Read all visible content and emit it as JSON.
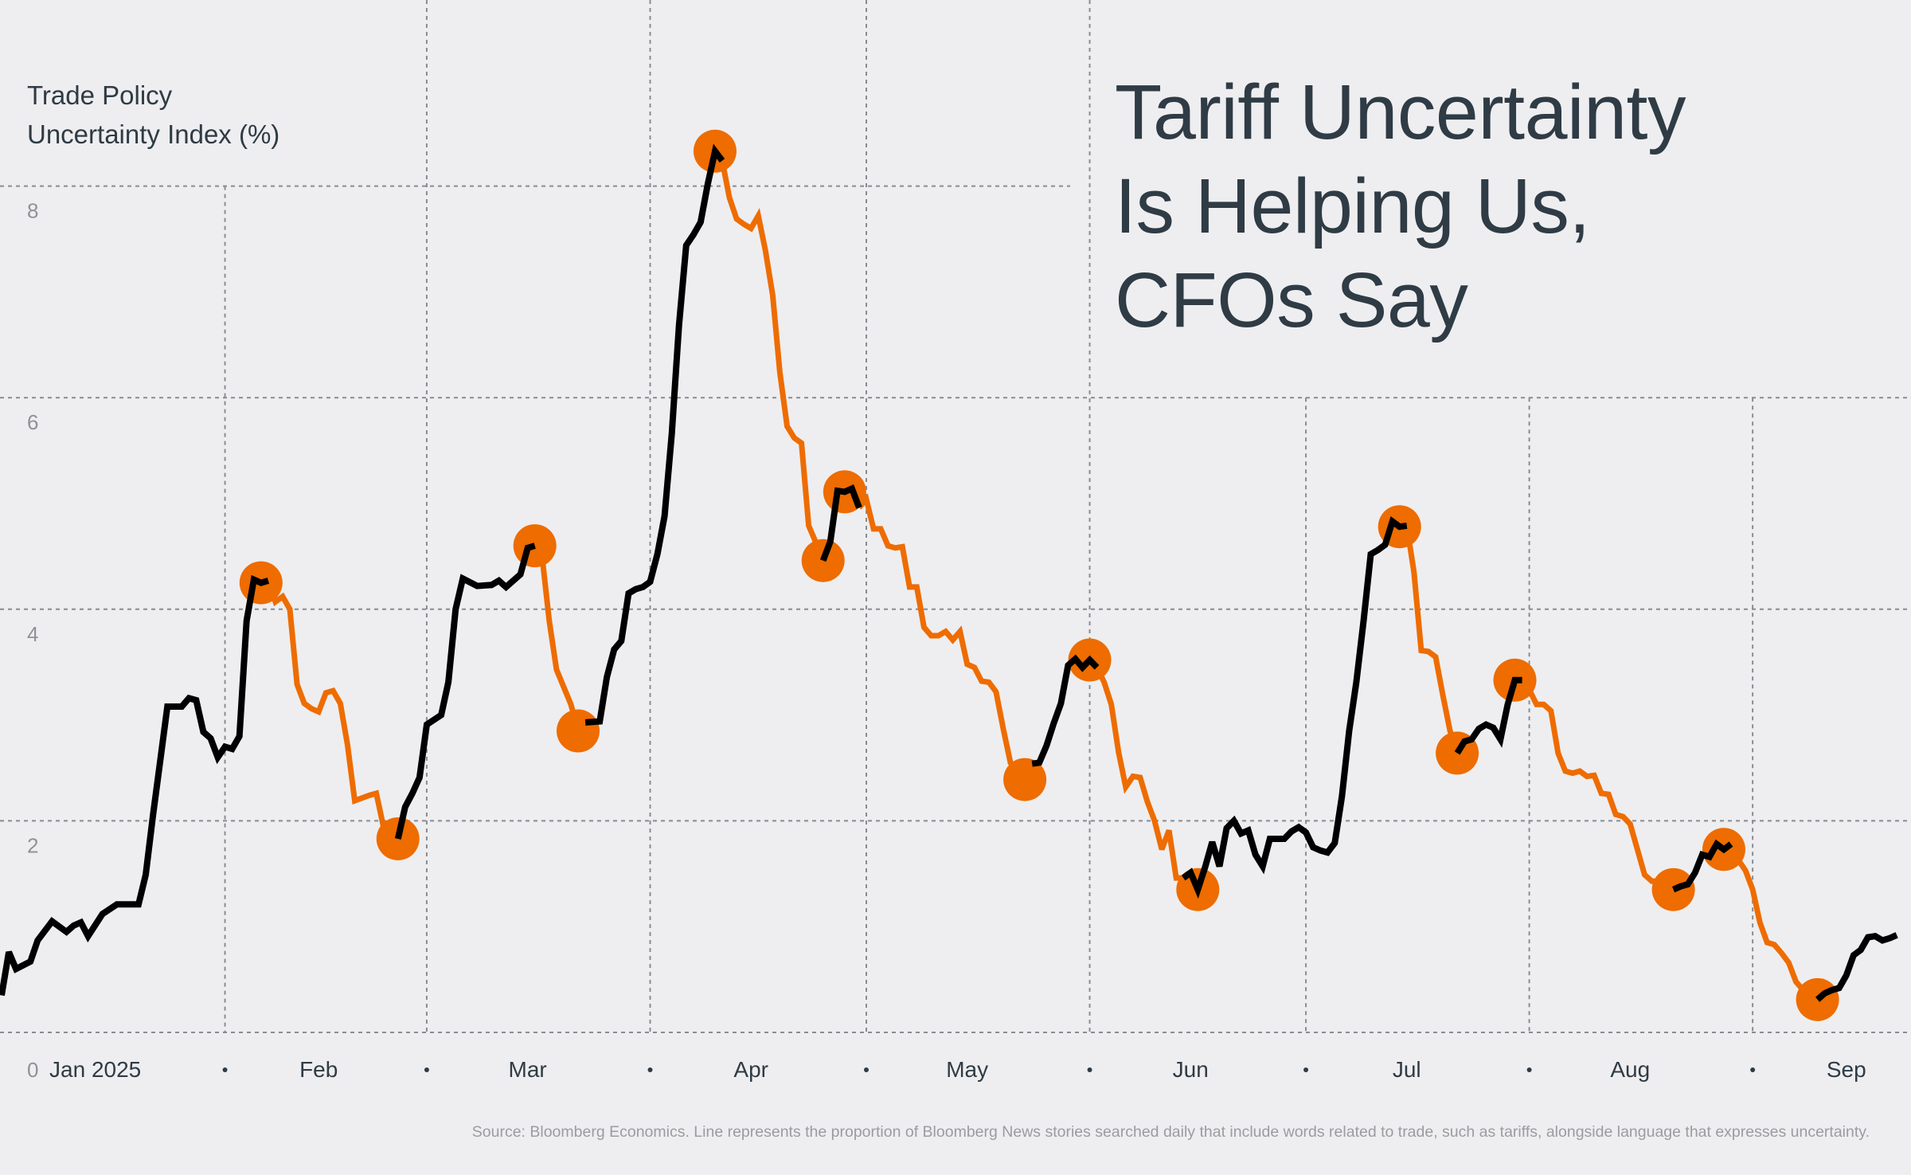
{
  "title_lines": [
    "Tariff Uncertainty",
    "Is Helping Us,",
    "CFOs Say"
  ],
  "y_axis_title_lines": [
    "Trade Policy",
    "Uncertainty Index (%)"
  ],
  "source": "Source: Bloomberg Economics. Line represents the proportion of Bloomberg News stories searched daily that include words related to trade, such as tariffs, alongside language that expresses uncertainty.",
  "colors": {
    "background": "#eeeef0",
    "rising_line": "#000000",
    "falling_line": "#ee6c00",
    "marker": "#ee6c00",
    "text": "#2f3b45",
    "grid": "#8a8c90"
  },
  "chart_data": {
    "type": "line",
    "title": "Tariff Uncertainty Is Helping Us, CFOs Say",
    "ylabel": "Trade Policy Uncertainty Index (%)",
    "xlabel": "",
    "ylim": [
      0,
      8.8
    ],
    "y_ticks": [
      "0",
      "2",
      "4",
      "6",
      "8"
    ],
    "x_tick_labels": [
      "Jan 2025",
      "Feb",
      "Mar",
      "Apr",
      "May",
      "Jun",
      "Jul",
      "Aug",
      "Sep"
    ],
    "grid": true,
    "series_points": [
      [
        "2025-01-01",
        0.35
      ],
      [
        "2025-01-02",
        0.76
      ],
      [
        "2025-01-03",
        0.6
      ],
      [
        "2025-01-05",
        0.67
      ],
      [
        "2025-01-06",
        0.87
      ],
      [
        "2025-01-08",
        1.05
      ],
      [
        "2025-01-10",
        0.95
      ],
      [
        "2025-01-11",
        1.01
      ],
      [
        "2025-01-12",
        1.04
      ],
      [
        "2025-01-13",
        0.91
      ],
      [
        "2025-01-15",
        1.12
      ],
      [
        "2025-01-17",
        1.21
      ],
      [
        "2025-01-20",
        1.21
      ],
      [
        "2025-01-21",
        1.49
      ],
      [
        "2025-01-22",
        2.05
      ],
      [
        "2025-01-23",
        2.56
      ],
      [
        "2025-01-24",
        3.08
      ],
      [
        "2025-01-26",
        3.08
      ],
      [
        "2025-01-27",
        3.16
      ],
      [
        "2025-01-28",
        3.14
      ],
      [
        "2025-01-29",
        2.84
      ],
      [
        "2025-01-30",
        2.78
      ],
      [
        "2025-01-31",
        2.6
      ],
      [
        "2025-02-01",
        2.7
      ],
      [
        "2025-02-02",
        2.68
      ],
      [
        "2025-02-03",
        2.8
      ],
      [
        "2025-02-04",
        3.89
      ],
      [
        "2025-02-05",
        4.28
      ],
      [
        "2025-02-06",
        4.25
      ],
      [
        "2025-02-07",
        4.27
      ],
      [
        "2025-02-08",
        4.07
      ],
      [
        "2025-02-09",
        4.12
      ],
      [
        "2025-02-10",
        4.0
      ],
      [
        "2025-02-11",
        3.29
      ],
      [
        "2025-02-12",
        3.11
      ],
      [
        "2025-02-13",
        3.06
      ],
      [
        "2025-02-14",
        3.03
      ],
      [
        "2025-02-15",
        3.21
      ],
      [
        "2025-02-16",
        3.23
      ],
      [
        "2025-02-17",
        3.11
      ],
      [
        "2025-02-18",
        2.72
      ],
      [
        "2025-02-19",
        2.19
      ],
      [
        "2025-02-21",
        2.24
      ],
      [
        "2025-02-22",
        2.26
      ],
      [
        "2025-02-23",
        1.94
      ],
      [
        "2025-02-24",
        1.86
      ],
      [
        "2025-02-25",
        1.83
      ],
      [
        "2025-02-26",
        2.13
      ],
      [
        "2025-02-27",
        2.26
      ],
      [
        "2025-02-28",
        2.41
      ],
      [
        "2025-03-01",
        2.91
      ],
      [
        "2025-03-03",
        3.0
      ],
      [
        "2025-03-04",
        3.31
      ],
      [
        "2025-03-05",
        4.0
      ],
      [
        "2025-03-06",
        4.29
      ],
      [
        "2025-03-08",
        4.22
      ],
      [
        "2025-03-10",
        4.23
      ],
      [
        "2025-03-11",
        4.27
      ],
      [
        "2025-03-12",
        4.21
      ],
      [
        "2025-03-14",
        4.33
      ],
      [
        "2025-03-15",
        4.58
      ],
      [
        "2025-03-16",
        4.6
      ],
      [
        "2025-03-17",
        4.5
      ],
      [
        "2025-03-18",
        3.89
      ],
      [
        "2025-03-19",
        3.43
      ],
      [
        "2025-03-21",
        3.1
      ],
      [
        "2025-03-22",
        2.85
      ],
      [
        "2025-03-23",
        2.93
      ],
      [
        "2025-03-25",
        2.94
      ],
      [
        "2025-03-26",
        3.36
      ],
      [
        "2025-03-27",
        3.62
      ],
      [
        "2025-03-28",
        3.7
      ],
      [
        "2025-03-29",
        4.15
      ],
      [
        "2025-03-30",
        4.19
      ],
      [
        "2025-03-31",
        4.21
      ],
      [
        "2025-04-01",
        4.26
      ],
      [
        "2025-04-02",
        4.52
      ],
      [
        "2025-04-03",
        4.88
      ],
      [
        "2025-04-04",
        5.66
      ],
      [
        "2025-04-05",
        6.68
      ],
      [
        "2025-04-06",
        7.44
      ],
      [
        "2025-04-07",
        7.54
      ],
      [
        "2025-04-08",
        7.66
      ],
      [
        "2025-04-09",
        8.02
      ],
      [
        "2025-04-10",
        8.33
      ],
      [
        "2025-04-11",
        8.24
      ],
      [
        "2025-04-12",
        7.89
      ],
      [
        "2025-04-13",
        7.69
      ],
      [
        "2025-04-14",
        7.64
      ],
      [
        "2025-04-15",
        7.6
      ],
      [
        "2025-04-16",
        7.72
      ],
      [
        "2025-04-17",
        7.39
      ],
      [
        "2025-04-18",
        6.97
      ],
      [
        "2025-04-19",
        6.24
      ],
      [
        "2025-04-20",
        5.73
      ],
      [
        "2025-04-21",
        5.62
      ],
      [
        "2025-04-22",
        5.57
      ],
      [
        "2025-04-23",
        4.79
      ],
      [
        "2025-04-24",
        4.63
      ],
      [
        "2025-04-25",
        4.46
      ],
      [
        "2025-04-26",
        4.64
      ],
      [
        "2025-04-27",
        5.12
      ],
      [
        "2025-04-28",
        5.11
      ],
      [
        "2025-04-29",
        5.14
      ],
      [
        "2025-04-30",
        4.96
      ],
      [
        "2025-05-01",
        5.04
      ],
      [
        "2025-05-02",
        4.76
      ],
      [
        "2025-05-03",
        4.76
      ],
      [
        "2025-05-04",
        4.6
      ],
      [
        "2025-05-05",
        4.58
      ],
      [
        "2025-05-06",
        4.59
      ],
      [
        "2025-05-07",
        4.21
      ],
      [
        "2025-05-08",
        4.21
      ],
      [
        "2025-05-09",
        3.83
      ],
      [
        "2025-05-10",
        3.75
      ],
      [
        "2025-05-11",
        3.75
      ],
      [
        "2025-05-12",
        3.79
      ],
      [
        "2025-05-13",
        3.71
      ],
      [
        "2025-05-14",
        3.79
      ],
      [
        "2025-05-15",
        3.48
      ],
      [
        "2025-05-16",
        3.45
      ],
      [
        "2025-05-17",
        3.32
      ],
      [
        "2025-05-18",
        3.31
      ],
      [
        "2025-05-19",
        3.22
      ],
      [
        "2025-05-20",
        2.87
      ],
      [
        "2025-05-21",
        2.55
      ],
      [
        "2025-05-22",
        2.5
      ],
      [
        "2025-05-23",
        2.39
      ],
      [
        "2025-05-24",
        2.54
      ],
      [
        "2025-05-25",
        2.55
      ],
      [
        "2025-05-26",
        2.71
      ],
      [
        "2025-05-27",
        2.92
      ],
      [
        "2025-05-28",
        3.11
      ],
      [
        "2025-05-29",
        3.47
      ],
      [
        "2025-05-30",
        3.53
      ],
      [
        "2025-05-31",
        3.45
      ],
      [
        "2025-06-01",
        3.52
      ],
      [
        "2025-06-02",
        3.45
      ],
      [
        "2025-06-03",
        3.31
      ],
      [
        "2025-06-04",
        3.1
      ],
      [
        "2025-06-05",
        2.65
      ],
      [
        "2025-06-06",
        2.32
      ],
      [
        "2025-06-07",
        2.42
      ],
      [
        "2025-06-08",
        2.41
      ],
      [
        "2025-06-09",
        2.18
      ],
      [
        "2025-06-10",
        2.0
      ],
      [
        "2025-06-11",
        1.73
      ],
      [
        "2025-06-12",
        1.91
      ],
      [
        "2025-06-13",
        1.46
      ],
      [
        "2025-06-14",
        1.46
      ],
      [
        "2025-06-15",
        1.51
      ],
      [
        "2025-06-16",
        1.35
      ],
      [
        "2025-06-17",
        1.56
      ],
      [
        "2025-06-18",
        1.8
      ],
      [
        "2025-06-19",
        1.57
      ],
      [
        "2025-06-20",
        1.93
      ],
      [
        "2025-06-21",
        2.0
      ],
      [
        "2025-06-22",
        1.88
      ],
      [
        "2025-06-23",
        1.91
      ],
      [
        "2025-06-24",
        1.68
      ],
      [
        "2025-06-25",
        1.57
      ],
      [
        "2025-06-26",
        1.83
      ],
      [
        "2025-06-28",
        1.83
      ],
      [
        "2025-06-29",
        1.9
      ],
      [
        "2025-06-30",
        1.94
      ],
      [
        "2025-07-01",
        1.89
      ],
      [
        "2025-07-02",
        1.75
      ],
      [
        "2025-07-03",
        1.72
      ],
      [
        "2025-07-04",
        1.7
      ],
      [
        "2025-07-05",
        1.79
      ],
      [
        "2025-07-06",
        2.23
      ],
      [
        "2025-07-07",
        2.85
      ],
      [
        "2025-07-08",
        3.31
      ],
      [
        "2025-07-09",
        3.89
      ],
      [
        "2025-07-10",
        4.52
      ],
      [
        "2025-07-11",
        4.56
      ],
      [
        "2025-07-12",
        4.61
      ],
      [
        "2025-07-13",
        4.83
      ],
      [
        "2025-07-14",
        4.78
      ],
      [
        "2025-07-15",
        4.79
      ],
      [
        "2025-07-16",
        4.35
      ],
      [
        "2025-07-17",
        3.61
      ],
      [
        "2025-07-18",
        3.6
      ],
      [
        "2025-07-19",
        3.55
      ],
      [
        "2025-07-20",
        3.19
      ],
      [
        "2025-07-21",
        2.85
      ],
      [
        "2025-07-22",
        2.64
      ],
      [
        "2025-07-23",
        2.75
      ],
      [
        "2025-07-24",
        2.77
      ],
      [
        "2025-07-25",
        2.87
      ],
      [
        "2025-07-26",
        2.91
      ],
      [
        "2025-07-27",
        2.88
      ],
      [
        "2025-07-28",
        2.77
      ],
      [
        "2025-07-29",
        3.1
      ],
      [
        "2025-07-30",
        3.33
      ],
      [
        "2025-07-31",
        3.33
      ],
      [
        "2025-08-01",
        3.24
      ],
      [
        "2025-08-02",
        3.1
      ],
      [
        "2025-08-03",
        3.1
      ],
      [
        "2025-08-04",
        3.04
      ],
      [
        "2025-08-05",
        2.64
      ],
      [
        "2025-08-06",
        2.47
      ],
      [
        "2025-08-07",
        2.45
      ],
      [
        "2025-08-08",
        2.47
      ],
      [
        "2025-08-09",
        2.42
      ],
      [
        "2025-08-10",
        2.43
      ],
      [
        "2025-08-11",
        2.26
      ],
      [
        "2025-08-12",
        2.25
      ],
      [
        "2025-08-13",
        2.06
      ],
      [
        "2025-08-14",
        2.04
      ],
      [
        "2025-08-15",
        1.97
      ],
      [
        "2025-08-16",
        1.73
      ],
      [
        "2025-08-17",
        1.49
      ],
      [
        "2025-08-18",
        1.43
      ],
      [
        "2025-08-19",
        1.43
      ],
      [
        "2025-08-20",
        1.42
      ],
      [
        "2025-08-21",
        1.35
      ],
      [
        "2025-08-22",
        1.38
      ],
      [
        "2025-08-23",
        1.4
      ],
      [
        "2025-08-24",
        1.51
      ],
      [
        "2025-08-25",
        1.68
      ],
      [
        "2025-08-26",
        1.66
      ],
      [
        "2025-08-27",
        1.78
      ],
      [
        "2025-08-28",
        1.73
      ],
      [
        "2025-08-29",
        1.78
      ],
      [
        "2025-08-30",
        1.63
      ],
      [
        "2025-08-31",
        1.53
      ],
      [
        "2025-09-01",
        1.35
      ],
      [
        "2025-09-02",
        1.04
      ],
      [
        "2025-09-03",
        0.85
      ],
      [
        "2025-09-04",
        0.83
      ],
      [
        "2025-09-05",
        0.75
      ],
      [
        "2025-09-06",
        0.66
      ],
      [
        "2025-09-07",
        0.48
      ],
      [
        "2025-09-08",
        0.4
      ],
      [
        "2025-09-09",
        0.39
      ],
      [
        "2025-09-10",
        0.31
      ],
      [
        "2025-09-11",
        0.37
      ],
      [
        "2025-09-12",
        0.4
      ],
      [
        "2025-09-13",
        0.42
      ],
      [
        "2025-09-14",
        0.54
      ],
      [
        "2025-09-15",
        0.73
      ],
      [
        "2025-09-16",
        0.78
      ],
      [
        "2025-09-17",
        0.9
      ],
      [
        "2025-09-18",
        0.91
      ],
      [
        "2025-09-19",
        0.87
      ],
      [
        "2025-09-20",
        0.89
      ],
      [
        "2025-09-21",
        0.92
      ]
    ],
    "falling_ranges": [
      [
        "2025-02-07",
        "2025-02-24"
      ],
      [
        "2025-03-16",
        "2025-03-22"
      ],
      [
        "2025-04-11",
        "2025-04-24"
      ],
      [
        "2025-04-30",
        "2025-05-23"
      ],
      [
        "2025-06-02",
        "2025-06-13"
      ],
      [
        "2025-07-15",
        "2025-07-21"
      ],
      [
        "2025-07-31",
        "2025-08-20"
      ],
      [
        "2025-08-29",
        "2025-09-09"
      ]
    ],
    "markers": [
      {
        "date": "2025-02-06",
        "kind": "peak"
      },
      {
        "date": "2025-02-25",
        "kind": "trough"
      },
      {
        "date": "2025-03-16",
        "kind": "peak"
      },
      {
        "date": "2025-03-22",
        "kind": "trough"
      },
      {
        "date": "2025-04-10",
        "kind": "peak"
      },
      {
        "date": "2025-04-25",
        "kind": "trough"
      },
      {
        "date": "2025-04-28",
        "kind": "peak"
      },
      {
        "date": "2025-05-23",
        "kind": "trough"
      },
      {
        "date": "2025-06-01",
        "kind": "peak"
      },
      {
        "date": "2025-06-16",
        "kind": "trough"
      },
      {
        "date": "2025-07-14",
        "kind": "peak"
      },
      {
        "date": "2025-07-22",
        "kind": "trough"
      },
      {
        "date": "2025-07-30",
        "kind": "peak"
      },
      {
        "date": "2025-08-21",
        "kind": "trough"
      },
      {
        "date": "2025-08-28",
        "kind": "peak"
      },
      {
        "date": "2025-09-10",
        "kind": "trough"
      }
    ]
  }
}
